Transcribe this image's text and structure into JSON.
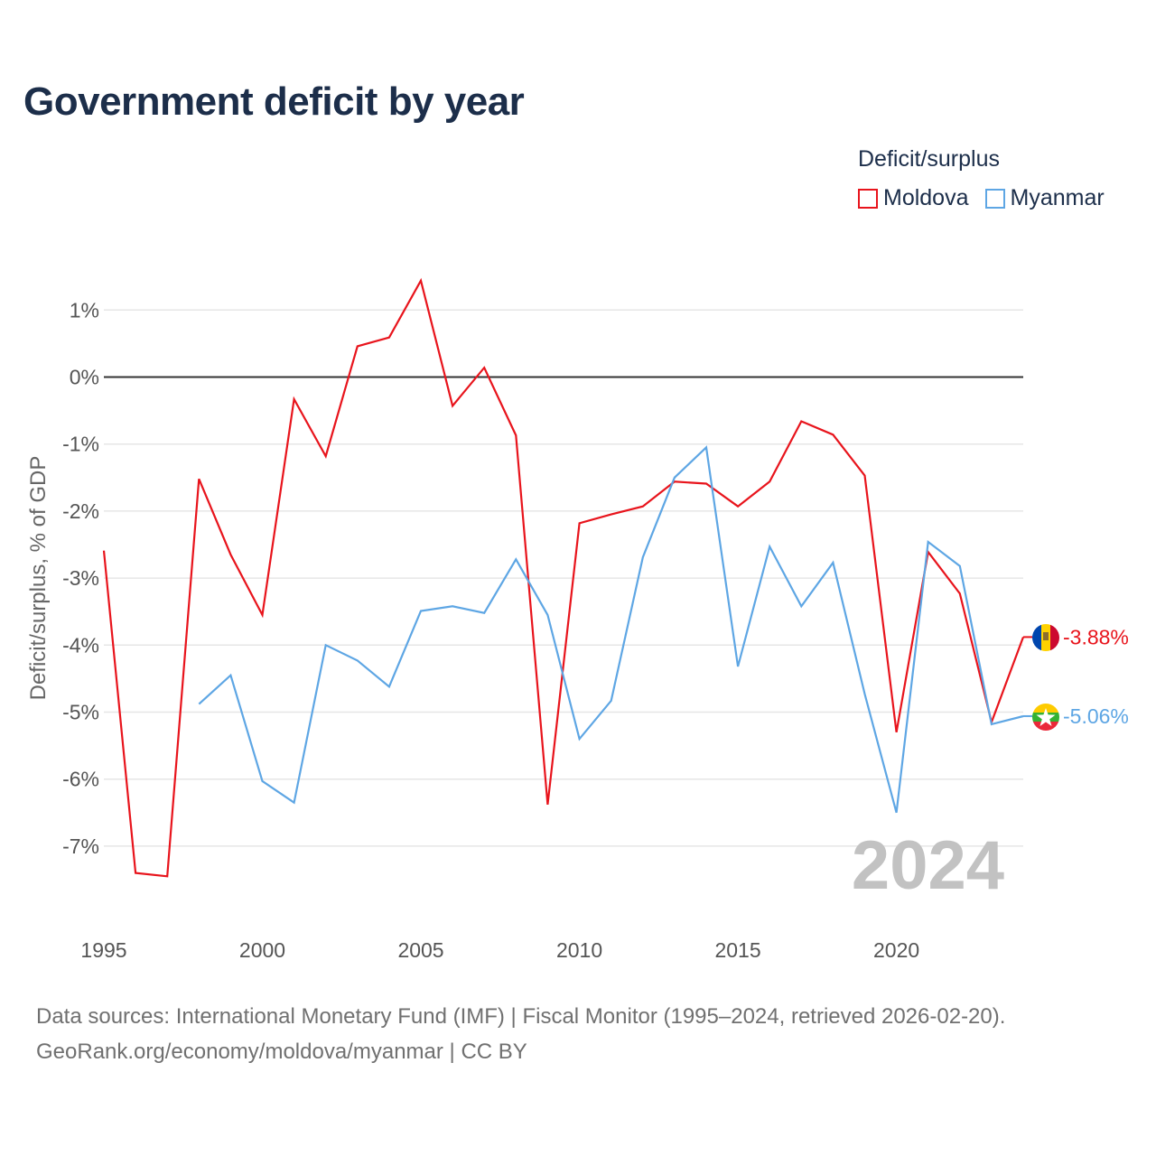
{
  "title": "Government deficit by year",
  "legend": {
    "title": "Deficit/surplus",
    "items": [
      {
        "label": "Moldova",
        "color": "#e8141c"
      },
      {
        "label": "Myanmar",
        "color": "#5ea6e4"
      }
    ]
  },
  "footer": {
    "sources": "Data sources: International Monetary Fund (IMF) | Fiscal Monitor (1995–2024, retrieved 2026-02-20).",
    "credit": "GeoRank.org/economy/moldova/myanmar | CC BY"
  },
  "chart_data": {
    "type": "line",
    "title": "Government deficit by year",
    "xlabel": "",
    "ylabel": "Deficit/surplus, % of GDP",
    "xlim": [
      1995,
      2024
    ],
    "ylim": [
      -8,
      1.5
    ],
    "x_ticks": [
      1995,
      2000,
      2005,
      2010,
      2015,
      2020
    ],
    "y_ticks": [
      1,
      0,
      -1,
      -2,
      -3,
      -4,
      -5,
      -6,
      -7
    ],
    "y_tick_labels": [
      "1%",
      "0%",
      "-1%",
      "-2%",
      "-3%",
      "-4%",
      "-5%",
      "-6%",
      "-7%"
    ],
    "zero_line": true,
    "grid": true,
    "watermark_year": "2024",
    "series": [
      {
        "name": "Moldova",
        "color": "#e8141c",
        "end_label": "-3.88%",
        "flag": "moldova-flag",
        "x": [
          1995,
          1996,
          1997,
          1998,
          1999,
          2000,
          2001,
          2002,
          2003,
          2004,
          2005,
          2006,
          2007,
          2008,
          2009,
          2010,
          2011,
          2012,
          2013,
          2014,
          2015,
          2016,
          2017,
          2018,
          2019,
          2020,
          2021,
          2022,
          2023,
          2024
        ],
        "values": [
          -2.59,
          -7.4,
          -7.45,
          -1.52,
          -2.65,
          -3.55,
          -0.33,
          -1.18,
          0.46,
          0.59,
          1.44,
          -0.43,
          0.14,
          -0.87,
          -6.38,
          -2.18,
          -2.05,
          -1.93,
          -1.56,
          -1.59,
          -1.93,
          -1.56,
          -0.66,
          -0.86,
          -1.47,
          -5.3,
          -2.61,
          -3.23,
          -5.15,
          -3.88
        ]
      },
      {
        "name": "Myanmar",
        "color": "#5ea6e4",
        "end_label": "-5.06%",
        "flag": "myanmar-flag",
        "x": [
          1998,
          1999,
          2000,
          2001,
          2002,
          2003,
          2004,
          2005,
          2006,
          2007,
          2008,
          2009,
          2010,
          2011,
          2012,
          2013,
          2014,
          2015,
          2016,
          2017,
          2018,
          2019,
          2020,
          2021,
          2022,
          2023,
          2024
        ],
        "values": [
          -4.88,
          -4.45,
          -6.03,
          -6.35,
          -4.0,
          -4.23,
          -4.62,
          -3.49,
          -3.42,
          -3.52,
          -2.72,
          -3.55,
          -5.4,
          -4.83,
          -2.69,
          -1.5,
          -1.05,
          -4.32,
          -2.53,
          -3.42,
          -2.77,
          -4.73,
          -6.5,
          -2.46,
          -2.82,
          -5.18,
          -5.06
        ]
      }
    ]
  }
}
